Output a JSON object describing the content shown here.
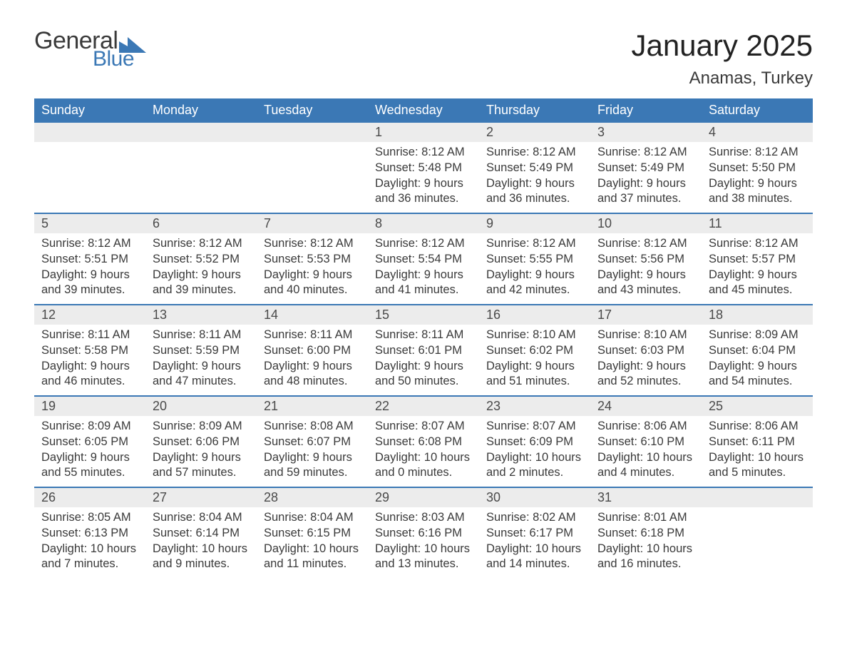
{
  "logo": {
    "text_general": "General",
    "text_blue": "Blue",
    "flag_color": "#3b78b5"
  },
  "header": {
    "title": "January 2025",
    "subtitle": "Anamas, Turkey"
  },
  "style": {
    "header_bg": "#3b78b5",
    "header_text": "#ffffff",
    "daynum_bg": "#ececec",
    "row_border": "#3b78b5",
    "body_text": "#3a3a3a",
    "page_bg": "#ffffff",
    "title_fontsize": 42,
    "subtitle_fontsize": 24,
    "weekday_fontsize": 18,
    "daynum_fontsize": 18,
    "body_fontsize": 16.5
  },
  "weekdays": [
    "Sunday",
    "Monday",
    "Tuesday",
    "Wednesday",
    "Thursday",
    "Friday",
    "Saturday"
  ],
  "weeks": [
    [
      null,
      null,
      null,
      {
        "n": "1",
        "sunrise": "8:12 AM",
        "sunset": "5:48 PM",
        "day_h": 9,
        "day_m": 36
      },
      {
        "n": "2",
        "sunrise": "8:12 AM",
        "sunset": "5:49 PM",
        "day_h": 9,
        "day_m": 36
      },
      {
        "n": "3",
        "sunrise": "8:12 AM",
        "sunset": "5:49 PM",
        "day_h": 9,
        "day_m": 37
      },
      {
        "n": "4",
        "sunrise": "8:12 AM",
        "sunset": "5:50 PM",
        "day_h": 9,
        "day_m": 38
      }
    ],
    [
      {
        "n": "5",
        "sunrise": "8:12 AM",
        "sunset": "5:51 PM",
        "day_h": 9,
        "day_m": 39
      },
      {
        "n": "6",
        "sunrise": "8:12 AM",
        "sunset": "5:52 PM",
        "day_h": 9,
        "day_m": 39
      },
      {
        "n": "7",
        "sunrise": "8:12 AM",
        "sunset": "5:53 PM",
        "day_h": 9,
        "day_m": 40
      },
      {
        "n": "8",
        "sunrise": "8:12 AM",
        "sunset": "5:54 PM",
        "day_h": 9,
        "day_m": 41
      },
      {
        "n": "9",
        "sunrise": "8:12 AM",
        "sunset": "5:55 PM",
        "day_h": 9,
        "day_m": 42
      },
      {
        "n": "10",
        "sunrise": "8:12 AM",
        "sunset": "5:56 PM",
        "day_h": 9,
        "day_m": 43
      },
      {
        "n": "11",
        "sunrise": "8:12 AM",
        "sunset": "5:57 PM",
        "day_h": 9,
        "day_m": 45
      }
    ],
    [
      {
        "n": "12",
        "sunrise": "8:11 AM",
        "sunset": "5:58 PM",
        "day_h": 9,
        "day_m": 46
      },
      {
        "n": "13",
        "sunrise": "8:11 AM",
        "sunset": "5:59 PM",
        "day_h": 9,
        "day_m": 47
      },
      {
        "n": "14",
        "sunrise": "8:11 AM",
        "sunset": "6:00 PM",
        "day_h": 9,
        "day_m": 48
      },
      {
        "n": "15",
        "sunrise": "8:11 AM",
        "sunset": "6:01 PM",
        "day_h": 9,
        "day_m": 50
      },
      {
        "n": "16",
        "sunrise": "8:10 AM",
        "sunset": "6:02 PM",
        "day_h": 9,
        "day_m": 51
      },
      {
        "n": "17",
        "sunrise": "8:10 AM",
        "sunset": "6:03 PM",
        "day_h": 9,
        "day_m": 52
      },
      {
        "n": "18",
        "sunrise": "8:09 AM",
        "sunset": "6:04 PM",
        "day_h": 9,
        "day_m": 54
      }
    ],
    [
      {
        "n": "19",
        "sunrise": "8:09 AM",
        "sunset": "6:05 PM",
        "day_h": 9,
        "day_m": 55
      },
      {
        "n": "20",
        "sunrise": "8:09 AM",
        "sunset": "6:06 PM",
        "day_h": 9,
        "day_m": 57
      },
      {
        "n": "21",
        "sunrise": "8:08 AM",
        "sunset": "6:07 PM",
        "day_h": 9,
        "day_m": 59
      },
      {
        "n": "22",
        "sunrise": "8:07 AM",
        "sunset": "6:08 PM",
        "day_h": 10,
        "day_m": 0
      },
      {
        "n": "23",
        "sunrise": "8:07 AM",
        "sunset": "6:09 PM",
        "day_h": 10,
        "day_m": 2
      },
      {
        "n": "24",
        "sunrise": "8:06 AM",
        "sunset": "6:10 PM",
        "day_h": 10,
        "day_m": 4
      },
      {
        "n": "25",
        "sunrise": "8:06 AM",
        "sunset": "6:11 PM",
        "day_h": 10,
        "day_m": 5
      }
    ],
    [
      {
        "n": "26",
        "sunrise": "8:05 AM",
        "sunset": "6:13 PM",
        "day_h": 10,
        "day_m": 7
      },
      {
        "n": "27",
        "sunrise": "8:04 AM",
        "sunset": "6:14 PM",
        "day_h": 10,
        "day_m": 9
      },
      {
        "n": "28",
        "sunrise": "8:04 AM",
        "sunset": "6:15 PM",
        "day_h": 10,
        "day_m": 11
      },
      {
        "n": "29",
        "sunrise": "8:03 AM",
        "sunset": "6:16 PM",
        "day_h": 10,
        "day_m": 13
      },
      {
        "n": "30",
        "sunrise": "8:02 AM",
        "sunset": "6:17 PM",
        "day_h": 10,
        "day_m": 14
      },
      {
        "n": "31",
        "sunrise": "8:01 AM",
        "sunset": "6:18 PM",
        "day_h": 10,
        "day_m": 16
      },
      null
    ]
  ],
  "labels": {
    "sunrise": "Sunrise:",
    "sunset": "Sunset:",
    "daylight": "Daylight:",
    "hours": "hours",
    "and": "and",
    "minutes": "minutes."
  }
}
